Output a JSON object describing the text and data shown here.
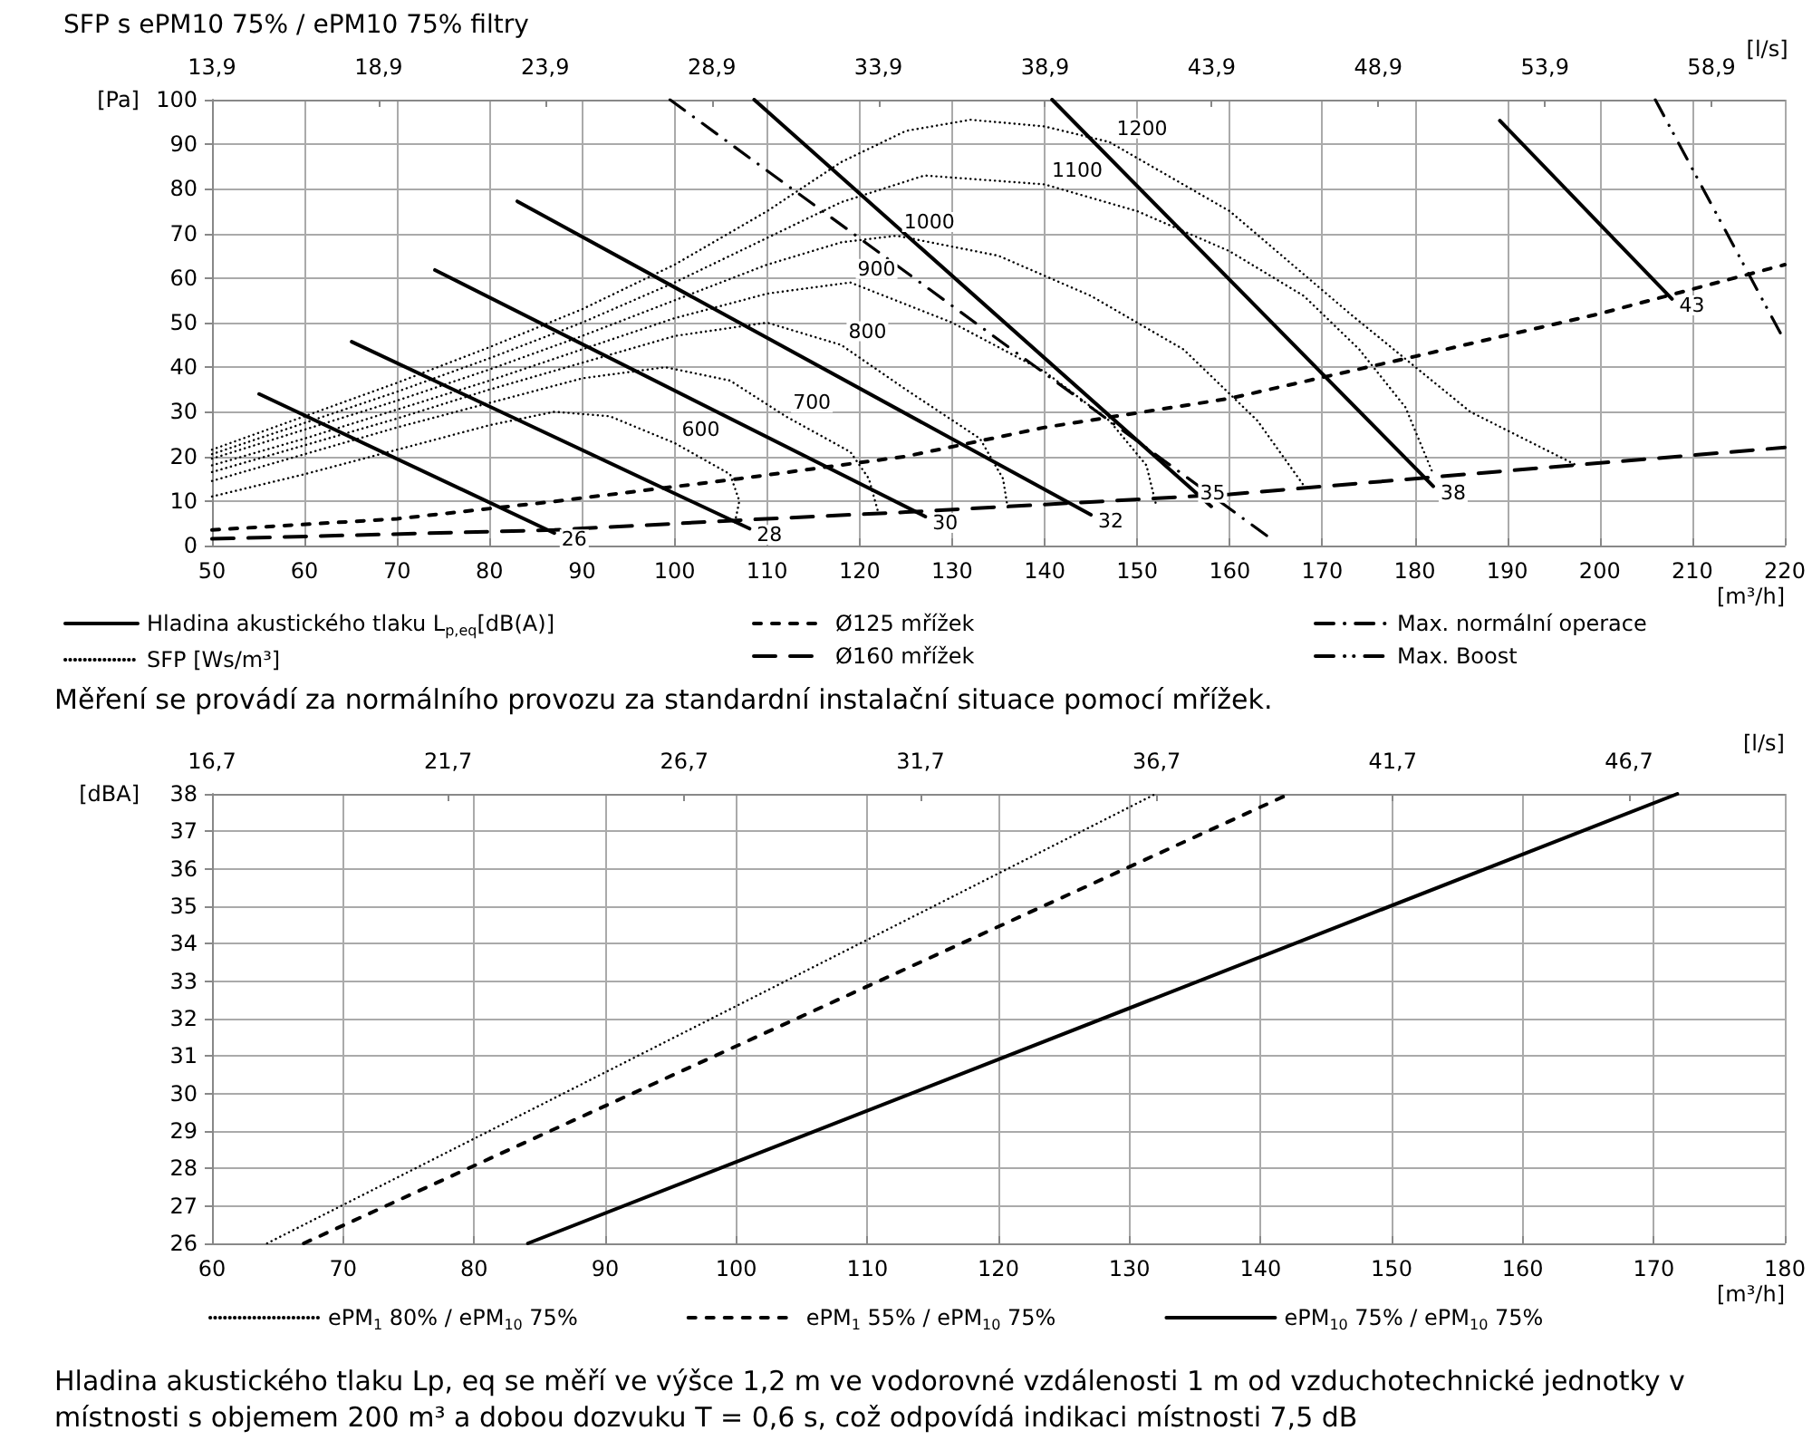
{
  "chart_data": [
    {
      "type": "line",
      "title": "SFP s ePM10 75% / ePM10 75% filtry",
      "xlabel": "[m³/h]",
      "ylabel": "[Pa]",
      "x2label": "[l/s]",
      "xlim": [
        50,
        220
      ],
      "xticks": [
        50,
        60,
        70,
        80,
        90,
        100,
        110,
        120,
        130,
        140,
        150,
        160,
        170,
        180,
        190,
        200,
        210,
        220
      ],
      "ylim": [
        0,
        100
      ],
      "yticks": [
        0,
        10,
        20,
        30,
        40,
        50,
        60,
        70,
        80,
        90,
        100
      ],
      "x2lim": [
        13.9,
        61.1
      ],
      "x2ticks": [
        {
          "value": 13.9,
          "label": "13,9"
        },
        {
          "value": 18.9,
          "label": "18,9"
        },
        {
          "value": 23.9,
          "label": "23,9"
        },
        {
          "value": 28.9,
          "label": "28,9"
        },
        {
          "value": 33.9,
          "label": "33,9"
        },
        {
          "value": 38.9,
          "label": "38,9"
        },
        {
          "value": 43.9,
          "label": "43,9"
        },
        {
          "value": 48.9,
          "label": "48,9"
        },
        {
          "value": 53.9,
          "label": "53,9"
        },
        {
          "value": 58.9,
          "label": "58,9"
        }
      ],
      "grid": true,
      "legend": "bottom",
      "marker": "none",
      "series": [
        {
          "name": "Hladina akustického tlaku L$_{p,eq}$[dB(A)]",
          "color": "#000000",
          "line_style": "solid",
          "x": [
            55.1,
            87,
            null,
            65.1,
            108.1,
            null,
            74.1,
            127.1,
            null,
            83,
            145,
            null,
            108.6,
            158,
            null,
            140.8,
            182,
            null,
            189.2,
            207.8
          ],
          "values": [
            34,
            2.8,
            null,
            45.7,
            3.8,
            null,
            61.8,
            6.5,
            null,
            77.2,
            6.9,
            null,
            100,
            8.8,
            null,
            100,
            13.3,
            null,
            95.3,
            55.3
          ]
        },
        {
          "name": "Ø125 mřížek",
          "color": "#000000",
          "line_style": "dashed",
          "x": [
            50,
            70,
            87,
            107,
            125,
            140,
            160,
            180,
            200,
            220
          ],
          "values": [
            3.5,
            6,
            9.9,
            15,
            20,
            26.5,
            33,
            42.4,
            52,
            63
          ]
        },
        {
          "name": "Max. normální operace",
          "color": "#000000",
          "line_style": "dashdot",
          "x": [
            99.5,
            164.8
          ],
          "values": [
            100,
            1
          ]
        },
        {
          "name": "SFP [Ws/m³]",
          "color": "#000000",
          "line_style": "dotted",
          "x": [
            50,
            60,
            70,
            80,
            87,
            93,
            100,
            106,
            107,
            106.5,
            null,
            50,
            60,
            70,
            80,
            90,
            99,
            106,
            112,
            119,
            121,
            122,
            null,
            50,
            60,
            70,
            80,
            90,
            100,
            110,
            118,
            125,
            133,
            135.5,
            136,
            null,
            50,
            60,
            70,
            80,
            90,
            100,
            110,
            119,
            130,
            140,
            147,
            151,
            152,
            null,
            50,
            60,
            70,
            80,
            90,
            100,
            110,
            118,
            124,
            135,
            145,
            155,
            163,
            168,
            null,
            50,
            60,
            70,
            80,
            90,
            100,
            110,
            118,
            127,
            140,
            150,
            160,
            168,
            174,
            179,
            182,
            null,
            50,
            60,
            70,
            80,
            90,
            100,
            110,
            118,
            125,
            132,
            140,
            147,
            160,
            173,
            186,
            197.5
          ],
          "values": [
            11,
            16,
            21.5,
            27,
            30,
            29,
            23,
            16,
            10,
            5,
            null,
            14.5,
            20.5,
            26.5,
            32,
            37.5,
            40,
            37,
            29,
            21,
            15,
            7.5,
            null,
            16.5,
            22.5,
            28.5,
            35,
            41,
            47,
            50,
            45,
            35,
            24,
            15,
            8.5,
            null,
            18,
            24,
            30.5,
            37,
            44,
            51,
            56.5,
            59,
            50,
            39,
            28,
            18,
            9.5,
            null,
            19.5,
            26,
            32.5,
            39.5,
            47,
            55,
            63,
            68,
            69.5,
            65,
            56,
            44,
            28,
            13.5,
            null,
            20.5,
            27.5,
            34.5,
            42,
            50,
            59,
            69,
            77,
            83,
            81,
            75,
            66,
            56,
            44,
            31,
            16,
            null,
            21.5,
            29,
            36.5,
            44.5,
            53,
            63,
            75,
            86,
            93,
            95.5,
            94,
            90.5,
            75,
            52,
            30,
            18
          ]
        },
        {
          "name": "Ø160 mřížek",
          "color": "#000000",
          "line_style": "longdash",
          "x": [
            50,
            87,
            108,
            125,
            160,
            197,
            220
          ],
          "values": [
            1.5,
            3.5,
            5.8,
            7.5,
            11.5,
            18,
            22
          ]
        },
        {
          "name": "Max. Boost",
          "color": "#000000",
          "line_style": "dashdotdot",
          "x": [
            206,
            220
          ],
          "values": [
            100,
            45.8
          ]
        }
      ],
      "annotations": [
        {
          "text": "26",
          "x": 87,
          "y": 2.8
        },
        {
          "text": "28",
          "x": 108.1,
          "y": 3.8
        },
        {
          "text": "30",
          "x": 127.1,
          "y": 6.5
        },
        {
          "text": "32",
          "x": 145,
          "y": 6.9
        },
        {
          "text": "35",
          "x": 156,
          "y": 8.8
        },
        {
          "text": "38",
          "x": 182,
          "y": 13.3
        },
        {
          "text": "43",
          "x": 207.8,
          "y": 55.3
        },
        {
          "text": "600",
          "x": 100,
          "y": 23
        },
        {
          "text": "700",
          "x": 112,
          "y": 29
        },
        {
          "text": "800",
          "x": 118,
          "y": 45
        },
        {
          "text": "900",
          "x": 119,
          "y": 59
        },
        {
          "text": "1000",
          "x": 124,
          "y": 69.5
        },
        {
          "text": "1100",
          "x": 140,
          "y": 81
        },
        {
          "text": "1200",
          "x": 147,
          "y": 90.5
        },
        "Měření se provádí za normálního provozu za standardní instalační situace pomocí mřížek."
      ]
    },
    {
      "type": "line",
      "xlabel": "[m³/h]",
      "ylabel": "[dBA]",
      "x2label": "[l/s]",
      "xlim": [
        60,
        180
      ],
      "xticks": [
        60,
        70,
        80,
        90,
        100,
        110,
        120,
        130,
        140,
        150,
        160,
        170,
        180
      ],
      "ylim": [
        26,
        38
      ],
      "yticks": [
        26,
        27,
        28,
        29,
        30,
        31,
        32,
        33,
        34,
        35,
        36,
        37,
        38
      ],
      "x2lim": [
        16.7,
        50
      ],
      "x2ticks": [
        {
          "value": 16.7,
          "label": "16,7"
        },
        {
          "value": 21.7,
          "label": "21,7"
        },
        {
          "value": 26.7,
          "label": "26,7"
        },
        {
          "value": 31.7,
          "label": "31,7"
        },
        {
          "value": 36.7,
          "label": "36,7"
        },
        {
          "value": 41.7,
          "label": "41,7"
        },
        {
          "value": 46.7,
          "label": "46,7"
        }
      ],
      "grid": true,
      "legend": "bottom",
      "marker": "none",
      "series": [
        {
          "name": "ePM$_{1}$ 80% / ePM$_{10}$ 75%",
          "color": "#000000",
          "line_style": "dotted",
          "x": [
            64.2,
            132
          ],
          "values": [
            26,
            38
          ]
        },
        {
          "name": "ePM$_{1}$ 55% / ePM$_{10}$ 75%",
          "color": "#000000",
          "line_style": "dashed",
          "x": [
            67,
            142.2
          ],
          "values": [
            26,
            38
          ]
        },
        {
          "name": "ePM$_{10}$ 75% / ePM$_{10}$ 75%",
          "color": "#000000",
          "line_style": "solid",
          "x": [
            84.1,
            171.8
          ],
          "values": [
            26,
            38
          ]
        }
      ],
      "annotations": [
        "Hladina akustického tlaku Lp, eq se měří ve výšce 1,2 m ve vodorovné vzdálenosti 1 m od vzduchotechnické jednotky v místnosti s objemem 200 m³ a dobou dozvuku T = 0,6 s, což odpovídá indikaci místnosti 7,5 dB"
      ]
    }
  ]
}
